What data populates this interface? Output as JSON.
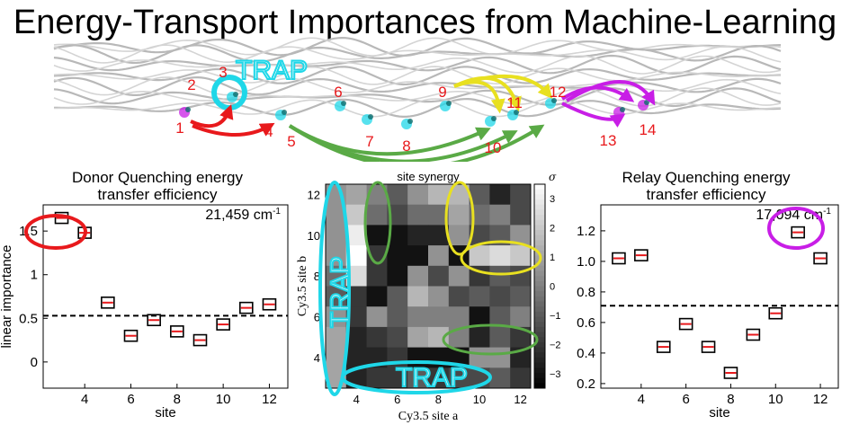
{
  "page": {
    "title": "Energy-Transport Importances from Machine-Learning"
  },
  "structure": {
    "trap_label": "TRAP",
    "site_labels": [
      "1",
      "2",
      "3",
      "4",
      "5",
      "6",
      "7",
      "8",
      "9",
      "10",
      "11",
      "12",
      "13",
      "14"
    ],
    "colors": {
      "sites": "#e8191c",
      "trap": "#1fd7e8",
      "red_arrow": "#e8191c",
      "green_arrow": "#5aaa46",
      "yellow_arrow": "#e8e020",
      "magenta_arrow": "#c81ee6"
    }
  },
  "chart_data": [
    {
      "type": "scatter",
      "title": "Donor Quenching energy transfer efficiency",
      "title_lines": [
        "Donor Quenching energy",
        "transfer efficiency"
      ],
      "annotation": "21,459 cm",
      "annotation_sup": "-1",
      "xlabel": "site",
      "ylabel": "linear importance",
      "x_ticks": [
        "4",
        "6",
        "8",
        "10",
        "12"
      ],
      "y_ticks": [
        "0",
        "0.5",
        "1",
        "1.5"
      ],
      "xlim": [
        2.2,
        12.8
      ],
      "ylim": [
        -0.3,
        1.8
      ],
      "x": [
        3,
        4,
        5,
        6,
        7,
        8,
        9,
        10,
        11,
        12
      ],
      "values": [
        1.65,
        1.48,
        0.68,
        0.3,
        0.48,
        0.35,
        0.25,
        0.43,
        0.62,
        0.66
      ],
      "baseline": 0.53,
      "highlight_color": "#e8191c"
    },
    {
      "type": "heatmap",
      "title": "site synergy",
      "xlabel": "Cy3.5 site a",
      "ylabel": "Cy3.5 site b",
      "x_ticks": [
        "4",
        "6",
        "8",
        "10",
        "12"
      ],
      "y_ticks": [
        "4",
        "6",
        "8",
        "10",
        "12"
      ],
      "sites": [
        3,
        4,
        5,
        6,
        7,
        8,
        9,
        10,
        11,
        12
      ],
      "colorbar_label": "σ",
      "colorbar_ticks": [
        "3",
        "2",
        "1",
        "0",
        "−1",
        "−2",
        "−3"
      ],
      "clim": [
        -3.5,
        3.5
      ],
      "matrix": [
        [
          0.5,
          1.0,
          0.0,
          -1.0,
          0.5,
          1.5,
          1.5,
          -1.0,
          -2.5,
          -1.5
        ],
        [
          0.5,
          2.0,
          -0.5,
          -1.5,
          -0.5,
          -0.5,
          1.0,
          -0.5,
          0.0,
          -1.5
        ],
        [
          0.5,
          3.0,
          -3.0,
          -3.0,
          -2.5,
          -2.5,
          0.5,
          -1.5,
          -1.0,
          0.5
        ],
        [
          0.5,
          3.5,
          -2.0,
          -3.0,
          -3.0,
          0.5,
          -3.0,
          2.0,
          2.5,
          2.0
        ],
        [
          -0.5,
          2.5,
          -2.0,
          -3.0,
          0.5,
          -1.5,
          0.5,
          -2.0,
          -1.0,
          -1.5
        ],
        [
          -1.0,
          -2.0,
          -3.0,
          -1.0,
          1.5,
          0.5,
          -1.5,
          -1.0,
          -1.5,
          -1.0
        ],
        [
          0.5,
          -2.0,
          0.5,
          -1.0,
          0.0,
          0.0,
          0.0,
          -3.0,
          -1.0,
          0.0
        ],
        [
          1.0,
          -2.5,
          -2.0,
          -1.5,
          1.0,
          1.5,
          0.0,
          -2.5,
          -1.0,
          -2.0
        ],
        [
          1.0,
          -2.5,
          -2.5,
          -2.0,
          -3.0,
          -3.0,
          -3.0,
          0.5,
          0.5,
          -2.5
        ],
        [
          1.0,
          -2.5,
          -2.0,
          -2.0,
          -1.0,
          -2.0,
          -1.5,
          -1.5,
          -1.0,
          -2.0
        ]
      ],
      "trap_label": "TRAP"
    },
    {
      "type": "scatter",
      "title": "Relay Quenching energy transfer efficiency",
      "title_lines": [
        "Relay Quenching energy",
        "transfer efficiency"
      ],
      "annotation": "17,094 cm",
      "annotation_sup": "-1",
      "xlabel": "site",
      "ylabel": "",
      "x_ticks": [
        "4",
        "6",
        "8",
        "10",
        "12"
      ],
      "y_ticks": [
        "0.2",
        "0.4",
        "0.6",
        "0.8",
        "1.0",
        "1.2"
      ],
      "xlim": [
        2.2,
        12.8
      ],
      "ylim": [
        0.17,
        1.37
      ],
      "x": [
        3,
        4,
        5,
        6,
        7,
        8,
        9,
        10,
        11,
        12
      ],
      "values": [
        1.02,
        1.04,
        0.44,
        0.59,
        0.44,
        0.27,
        0.52,
        0.66,
        1.19,
        1.02
      ],
      "baseline": 0.71,
      "highlight_color": "#c81ee6"
    }
  ]
}
